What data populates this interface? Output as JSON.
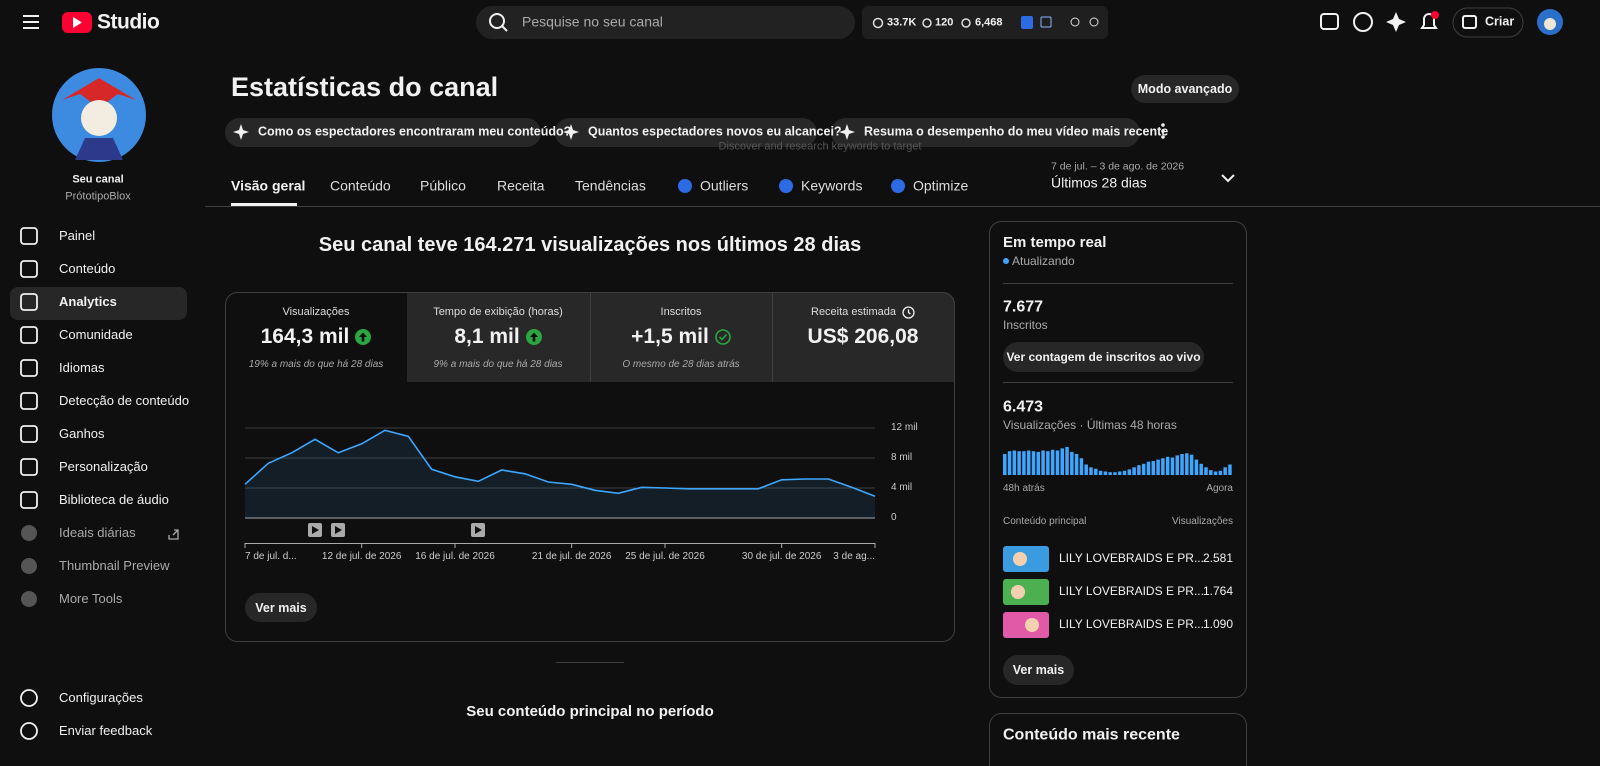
{
  "topbar": {
    "logo": "Studio",
    "search_placeholder": "Pesquise no seu canal",
    "stats": [
      "33.7K",
      "120",
      "6,468"
    ],
    "create": "Criar"
  },
  "sidebar": {
    "channel_label": "Seu canal",
    "channel_name": "PrótotipoBlox",
    "nav": [
      "Painel",
      "Conteúdo",
      "Analytics",
      "Comunidade",
      "Idiomas",
      "Detecção de conteúdo",
      "Ganhos",
      "Personalização",
      "Biblioteca de áudio",
      "Ideais diárias",
      "Thumbnail Preview",
      "More Tools"
    ],
    "footer": [
      "Configurações",
      "Enviar feedback"
    ]
  },
  "header": {
    "title": "Estatísticas do canal",
    "advanced_mode": "Modo avançado",
    "chips": [
      "Como os espectadores encontraram meu conteúdo?",
      "Quantos espectadores novos eu alcancei?",
      "Resuma o desempenho do meu vídeo mais recente"
    ],
    "tooltip": "Discover and research keywords to target",
    "tabs": [
      "Visão geral",
      "Conteúdo",
      "Público",
      "Receita",
      "Tendências",
      "Outliers",
      "Keywords",
      "Optimize"
    ],
    "date_range": "7 de jul. – 3 de ago. de 2026",
    "period": "Últimos 28 dias"
  },
  "overview": {
    "headline": "Seu canal teve 164.271 visualizações nos últimos 28 dias",
    "metrics": [
      {
        "label": "Visualizações",
        "value": "164,3 mil",
        "note": "19% a mais do que há 28 dias"
      },
      {
        "label": "Tempo de exibição (horas)",
        "value": "8,1 mil",
        "note": "9% a mais do que há 28 dias"
      },
      {
        "label": "Inscritos",
        "value": "+1,5 mil",
        "note": "O mesmo de 28 dias atrás"
      },
      {
        "label": "Receita estimada",
        "value": "US$ 206,08"
      }
    ],
    "more": "Ver mais",
    "top_content_title": "Seu conteúdo principal no período"
  },
  "chart_data": [
    {
      "type": "line",
      "categories": [
        "7 de jul. d...",
        null,
        null,
        null,
        null,
        "12 de jul. de 2026",
        null,
        null,
        null,
        "16 de jul. de 2026",
        null,
        null,
        null,
        null,
        "21 de jul. de 2026",
        null,
        null,
        null,
        "25 de jul. de 2026",
        null,
        null,
        null,
        null,
        "30 de jul. de 2026",
        null,
        null,
        null,
        "3 de ag..."
      ],
      "values": [
        4500,
        7300,
        8700,
        10500,
        8700,
        9900,
        11700,
        10900,
        6500,
        5500,
        4900,
        6400,
        5900,
        4800,
        4500,
        3700,
        3300,
        4100,
        4000,
        3900,
        3900,
        3900,
        3900,
        5100,
        5200,
        5200,
        4100,
        2900
      ],
      "color": "#3ea6ff",
      "ylim": [
        0,
        12000
      ],
      "yticks": [
        0,
        {
          "value": 4000,
          "label": "4 mil"
        },
        {
          "value": 8000,
          "label": "8 mil"
        },
        {
          "value": 12000,
          "label": "12 mil"
        }
      ],
      "grid": true
    },
    {
      "type": "bar",
      "values": [
        150,
        170,
        175,
        170,
        170,
        175,
        170,
        165,
        175,
        170,
        180,
        175,
        190,
        200,
        165,
        150,
        120,
        75,
        55,
        45,
        30,
        25,
        20,
        20,
        25,
        30,
        40,
        55,
        70,
        80,
        95,
        100,
        110,
        120,
        130,
        125,
        140,
        150,
        155,
        145,
        110,
        80,
        55,
        35,
        25,
        30,
        55,
        75
      ],
      "color": "#3ea6ff",
      "start_label": "48h atrás",
      "end_label": "Agora"
    }
  ],
  "realtime": {
    "title": "Em tempo real",
    "status": "Atualizando",
    "subscribers": "7.677",
    "subscribers_label": "Inscritos",
    "live_button": "Ver contagem de inscritos ao vivo",
    "views": "6.473",
    "views_label": "Visualizações · Últimas 48 horas",
    "table_header": [
      "Conteúdo principal",
      "Visualizações"
    ],
    "rows": [
      [
        "LILY LOVEBRAIDS E PR...",
        "2.581"
      ],
      [
        "LILY LOVEBRAIDS E PR...",
        "1.764"
      ],
      [
        "LILY LOVEBRAIDS E PR...",
        "1.090"
      ]
    ],
    "more": "Ver mais"
  },
  "latest": {
    "title": "Conteúdo mais recente"
  }
}
